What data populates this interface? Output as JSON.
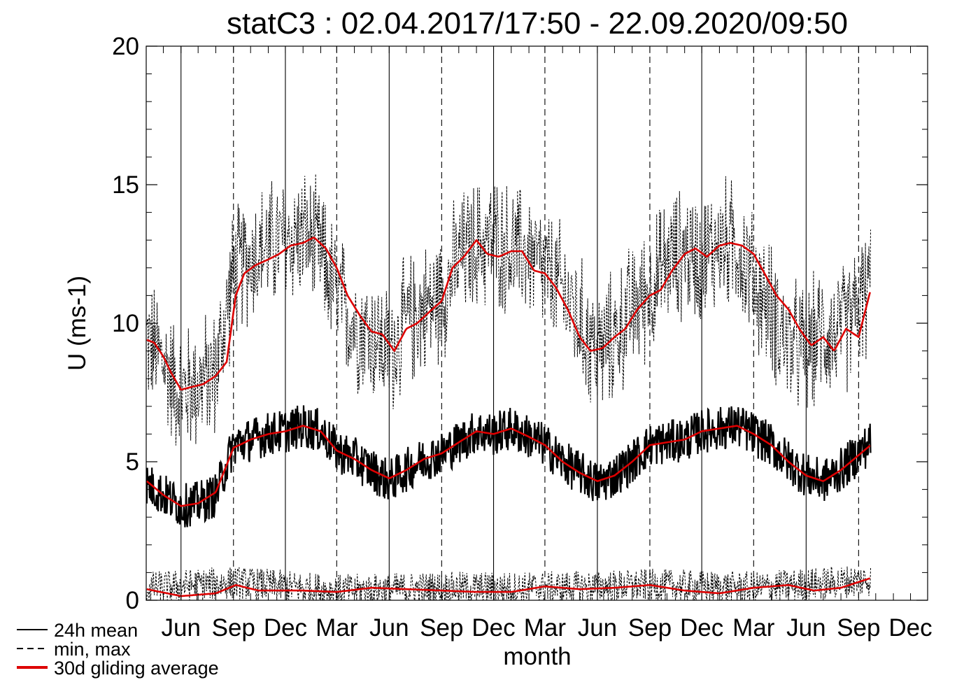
{
  "chart_data": {
    "type": "line",
    "title": "statC3 : 02.04.2017/17:50 - 22.09.2020/09:50",
    "xlabel": "month",
    "ylabel": "U (ms-1)",
    "ylim": [
      0,
      20
    ],
    "yticks": [
      0,
      5,
      10,
      15,
      20
    ],
    "xlim": [
      "2017-04-01",
      "2020-12-31"
    ],
    "x_tick_labels": [
      {
        "label": "Jun",
        "date": "2017-06-01",
        "style": "solid"
      },
      {
        "label": "Sep",
        "date": "2017-09-01",
        "style": "dashed"
      },
      {
        "label": "Dec",
        "date": "2017-12-01",
        "style": "solid"
      },
      {
        "label": "Mar",
        "date": "2018-03-01",
        "style": "dashed"
      },
      {
        "label": "Jun",
        "date": "2018-06-01",
        "style": "solid"
      },
      {
        "label": "Sep",
        "date": "2018-09-01",
        "style": "dashed"
      },
      {
        "label": "Dec",
        "date": "2018-12-01",
        "style": "solid"
      },
      {
        "label": "Mar",
        "date": "2019-03-01",
        "style": "dashed"
      },
      {
        "label": "Jun",
        "date": "2019-06-01",
        "style": "solid"
      },
      {
        "label": "Sep",
        "date": "2019-09-01",
        "style": "dashed"
      },
      {
        "label": "Dec",
        "date": "2019-12-01",
        "style": "solid"
      },
      {
        "label": "Mar",
        "date": "2020-03-01",
        "style": "dashed"
      },
      {
        "label": "Jun",
        "date": "2020-06-01",
        "style": "solid"
      },
      {
        "label": "Sep",
        "date": "2020-09-01",
        "style": "dashed"
      },
      {
        "label": "Dec",
        "date": "2020-12-01",
        "style": "none"
      }
    ],
    "grid": "vertical month lines",
    "legend_position": "bottom-left",
    "series": [
      {
        "name": "24h mean",
        "color": "#000000",
        "style": "solid",
        "x": [
          "2017-04-02",
          "2017-05-01",
          "2017-06-01",
          "2017-07-01",
          "2017-08-01",
          "2017-09-01",
          "2017-10-01",
          "2017-11-01",
          "2017-12-01",
          "2018-01-01",
          "2018-02-01",
          "2018-03-01",
          "2018-04-01",
          "2018-05-01",
          "2018-06-01",
          "2018-07-01",
          "2018-08-01",
          "2018-09-01",
          "2018-10-01",
          "2018-11-01",
          "2018-12-01",
          "2019-01-01",
          "2019-02-01",
          "2019-03-01",
          "2019-04-01",
          "2019-05-01",
          "2019-06-01",
          "2019-07-01",
          "2019-08-01",
          "2019-09-01",
          "2019-10-01",
          "2019-11-01",
          "2019-12-01",
          "2020-01-01",
          "2020-02-01",
          "2020-03-01",
          "2020-04-01",
          "2020-05-01",
          "2020-06-01",
          "2020-07-01",
          "2020-08-01",
          "2020-09-22"
        ],
        "values": [
          4.2,
          3.8,
          3.4,
          3.5,
          3.8,
          5.6,
          5.8,
          6.0,
          6.1,
          6.3,
          6.1,
          5.4,
          5.1,
          4.7,
          4.3,
          4.7,
          5.1,
          5.3,
          5.7,
          6.1,
          6.0,
          6.2,
          5.9,
          5.6,
          5.0,
          4.6,
          4.2,
          4.5,
          5.0,
          5.6,
          5.7,
          5.8,
          6.1,
          6.2,
          6.3,
          6.0,
          5.6,
          5.0,
          4.5,
          4.3,
          4.7,
          5.7
        ],
        "noise": 0.8
      },
      {
        "name": "min, max",
        "color": "#000000",
        "style": "dashed",
        "max": {
          "x": [
            "2017-04-02",
            "2017-05-01",
            "2017-06-01",
            "2017-07-01",
            "2017-08-01",
            "2017-09-01",
            "2017-10-01",
            "2017-11-01",
            "2017-12-01",
            "2018-01-01",
            "2018-02-01",
            "2018-03-01",
            "2018-04-01",
            "2018-05-01",
            "2018-06-01",
            "2018-07-01",
            "2018-08-01",
            "2018-09-01",
            "2018-10-01",
            "2018-11-01",
            "2018-12-01",
            "2019-01-01",
            "2019-02-01",
            "2019-03-01",
            "2019-04-01",
            "2019-05-01",
            "2019-06-01",
            "2019-07-01",
            "2019-08-01",
            "2019-09-01",
            "2019-10-01",
            "2019-11-01",
            "2019-12-01",
            "2020-01-01",
            "2020-02-01",
            "2020-03-01",
            "2020-04-01",
            "2020-05-01",
            "2020-06-01",
            "2020-07-01",
            "2020-08-01",
            "2020-09-22"
          ],
          "values": [
            9.4,
            8.6,
            7.5,
            7.8,
            8.2,
            11.8,
            12.4,
            12.8,
            13.0,
            13.2,
            12.5,
            11.0,
            10.0,
            9.6,
            8.9,
            10.0,
            10.5,
            11.0,
            12.3,
            12.8,
            13.0,
            12.6,
            12.5,
            11.8,
            11.2,
            10.0,
            8.9,
            9.5,
            10.5,
            11.2,
            12.2,
            12.6,
            12.3,
            12.9,
            12.8,
            11.5,
            10.5,
            9.2,
            9.0,
            9.7,
            9.6,
            11.3
          ],
          "noise": 2.0
        },
        "min": {
          "x": [
            "2017-04-02",
            "2017-09-01",
            "2018-03-01",
            "2018-09-01",
            "2019-03-01",
            "2019-09-01",
            "2020-03-01",
            "2020-09-22"
          ],
          "values": [
            0.5,
            0.7,
            0.4,
            0.5,
            0.5,
            0.6,
            0.5,
            0.8
          ],
          "noise": 0.6
        }
      },
      {
        "name": "30d gliding average",
        "color": "#dd0000",
        "style": "solid",
        "mean": {
          "x": [
            "2017-04-02",
            "2017-05-01",
            "2017-06-01",
            "2017-07-01",
            "2017-08-01",
            "2017-09-01",
            "2017-10-01",
            "2017-11-01",
            "2017-12-01",
            "2018-01-01",
            "2018-02-01",
            "2018-03-01",
            "2018-04-01",
            "2018-05-01",
            "2018-06-01",
            "2018-07-01",
            "2018-08-01",
            "2018-09-01",
            "2018-10-01",
            "2018-11-01",
            "2018-12-01",
            "2019-01-01",
            "2019-02-01",
            "2019-03-01",
            "2019-04-01",
            "2019-05-01",
            "2019-06-01",
            "2019-07-01",
            "2019-08-01",
            "2019-09-01",
            "2019-10-01",
            "2019-11-01",
            "2019-12-01",
            "2020-01-01",
            "2020-02-01",
            "2020-03-01",
            "2020-04-01",
            "2020-05-01",
            "2020-06-01",
            "2020-07-01",
            "2020-08-01",
            "2020-09-22"
          ],
          "values": [
            4.3,
            3.8,
            3.4,
            3.5,
            3.9,
            5.5,
            5.8,
            6.0,
            6.1,
            6.3,
            6.1,
            5.4,
            5.1,
            4.7,
            4.4,
            4.7,
            5.1,
            5.3,
            5.7,
            6.1,
            6.0,
            6.2,
            5.9,
            5.6,
            5.0,
            4.6,
            4.3,
            4.5,
            5.0,
            5.6,
            5.7,
            5.8,
            6.1,
            6.2,
            6.3,
            6.0,
            5.6,
            5.0,
            4.5,
            4.3,
            4.7,
            5.6
          ]
        },
        "max": {
          "x": [
            "2017-04-02",
            "2017-04-15",
            "2017-05-01",
            "2017-05-15",
            "2017-06-01",
            "2017-06-20",
            "2017-07-10",
            "2017-08-01",
            "2017-08-20",
            "2017-09-05",
            "2017-09-20",
            "2017-10-10",
            "2017-11-01",
            "2017-11-20",
            "2017-12-10",
            "2018-01-01",
            "2018-01-20",
            "2018-02-10",
            "2018-03-01",
            "2018-03-20",
            "2018-04-10",
            "2018-05-01",
            "2018-05-20",
            "2018-06-10",
            "2018-07-01",
            "2018-07-20",
            "2018-08-10",
            "2018-09-01",
            "2018-09-20",
            "2018-10-10",
            "2018-11-01",
            "2018-11-20",
            "2018-12-10",
            "2019-01-01",
            "2019-01-20",
            "2019-02-10",
            "2019-03-01",
            "2019-03-20",
            "2019-04-10",
            "2019-05-01",
            "2019-05-20",
            "2019-06-10",
            "2019-07-01",
            "2019-07-20",
            "2019-08-10",
            "2019-09-01",
            "2019-09-20",
            "2019-10-10",
            "2019-11-01",
            "2019-11-20",
            "2019-12-10",
            "2020-01-01",
            "2020-01-20",
            "2020-02-10",
            "2020-03-01",
            "2020-03-20",
            "2020-04-10",
            "2020-05-01",
            "2020-05-20",
            "2020-06-10",
            "2020-07-01",
            "2020-07-20",
            "2020-08-10",
            "2020-09-01",
            "2020-09-22"
          ],
          "values": [
            9.4,
            9.3,
            8.8,
            8.2,
            7.6,
            7.7,
            7.8,
            8.1,
            8.6,
            11.0,
            11.8,
            12.1,
            12.3,
            12.5,
            12.8,
            12.9,
            13.1,
            12.7,
            12.0,
            11.0,
            10.3,
            9.7,
            9.6,
            9.0,
            9.8,
            10.0,
            10.4,
            10.8,
            12.0,
            12.4,
            13.0,
            12.5,
            12.4,
            12.6,
            12.6,
            11.9,
            11.8,
            11.3,
            10.5,
            9.5,
            9.0,
            9.1,
            9.5,
            9.8,
            10.5,
            11.0,
            11.2,
            11.9,
            12.5,
            12.7,
            12.4,
            12.8,
            12.9,
            12.8,
            12.5,
            11.8,
            11.0,
            10.5,
            9.8,
            9.2,
            9.5,
            9.0,
            9.8,
            9.5,
            11.2
          ]
        },
        "min": {
          "x": [
            "2017-04-02",
            "2017-06-01",
            "2017-08-01",
            "2017-09-05",
            "2017-10-15",
            "2018-01-01",
            "2018-03-01",
            "2018-05-01",
            "2018-07-01",
            "2018-09-01",
            "2018-11-01",
            "2019-01-01",
            "2019-03-01",
            "2019-05-01",
            "2019-07-01",
            "2019-09-01",
            "2019-11-01",
            "2020-01-01",
            "2020-03-01",
            "2020-05-01",
            "2020-06-15",
            "2020-08-01",
            "2020-09-22"
          ],
          "values": [
            0.4,
            0.15,
            0.25,
            0.55,
            0.35,
            0.35,
            0.3,
            0.45,
            0.4,
            0.35,
            0.3,
            0.3,
            0.5,
            0.4,
            0.45,
            0.55,
            0.35,
            0.25,
            0.45,
            0.55,
            0.35,
            0.45,
            0.8
          ]
        }
      }
    ]
  },
  "legend": [
    {
      "label": "24h mean",
      "style": "solid",
      "color": "#000000"
    },
    {
      "label": "min, max",
      "style": "dashed",
      "color": "#000000"
    },
    {
      "label": "30d gliding average",
      "style": "solid",
      "color": "#dd0000"
    }
  ]
}
